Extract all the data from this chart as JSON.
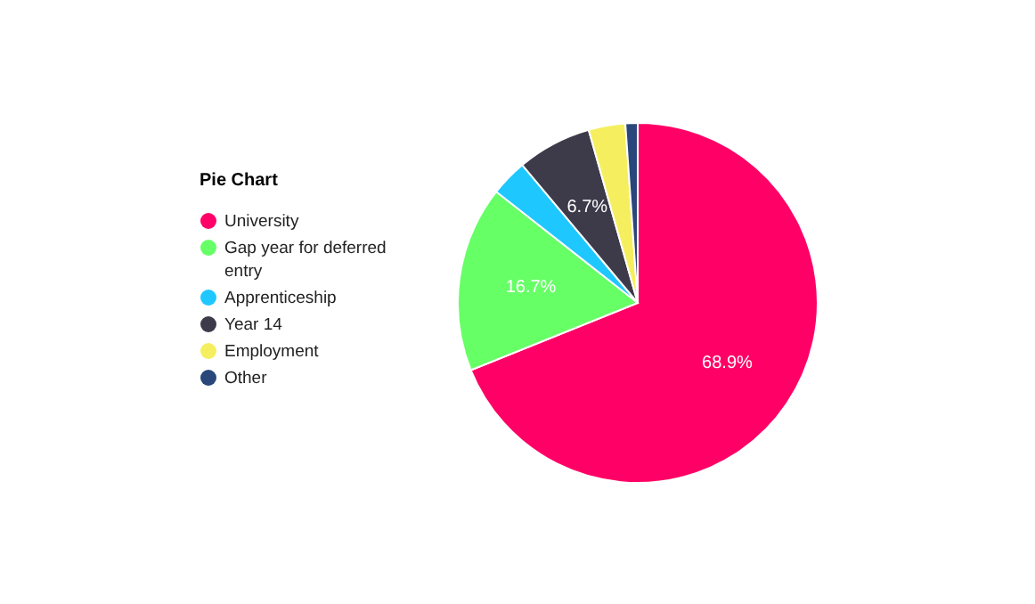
{
  "chart_data": {
    "type": "pie",
    "title": "Pie Chart",
    "categories": [
      "University",
      "Gap year for deferred entry",
      "Apprenticeship",
      "Year 14",
      "Employment",
      "Other"
    ],
    "values": [
      68.9,
      16.7,
      3.3,
      6.7,
      3.3,
      1.1
    ],
    "colors": [
      "#ff0066",
      "#66ff66",
      "#1ec8ff",
      "#3d3a4a",
      "#f5ef5f",
      "#29477a"
    ],
    "value_labels": [
      "68.9%",
      "16.7%",
      null,
      "6.7%",
      null,
      null
    ],
    "legend": "left"
  }
}
